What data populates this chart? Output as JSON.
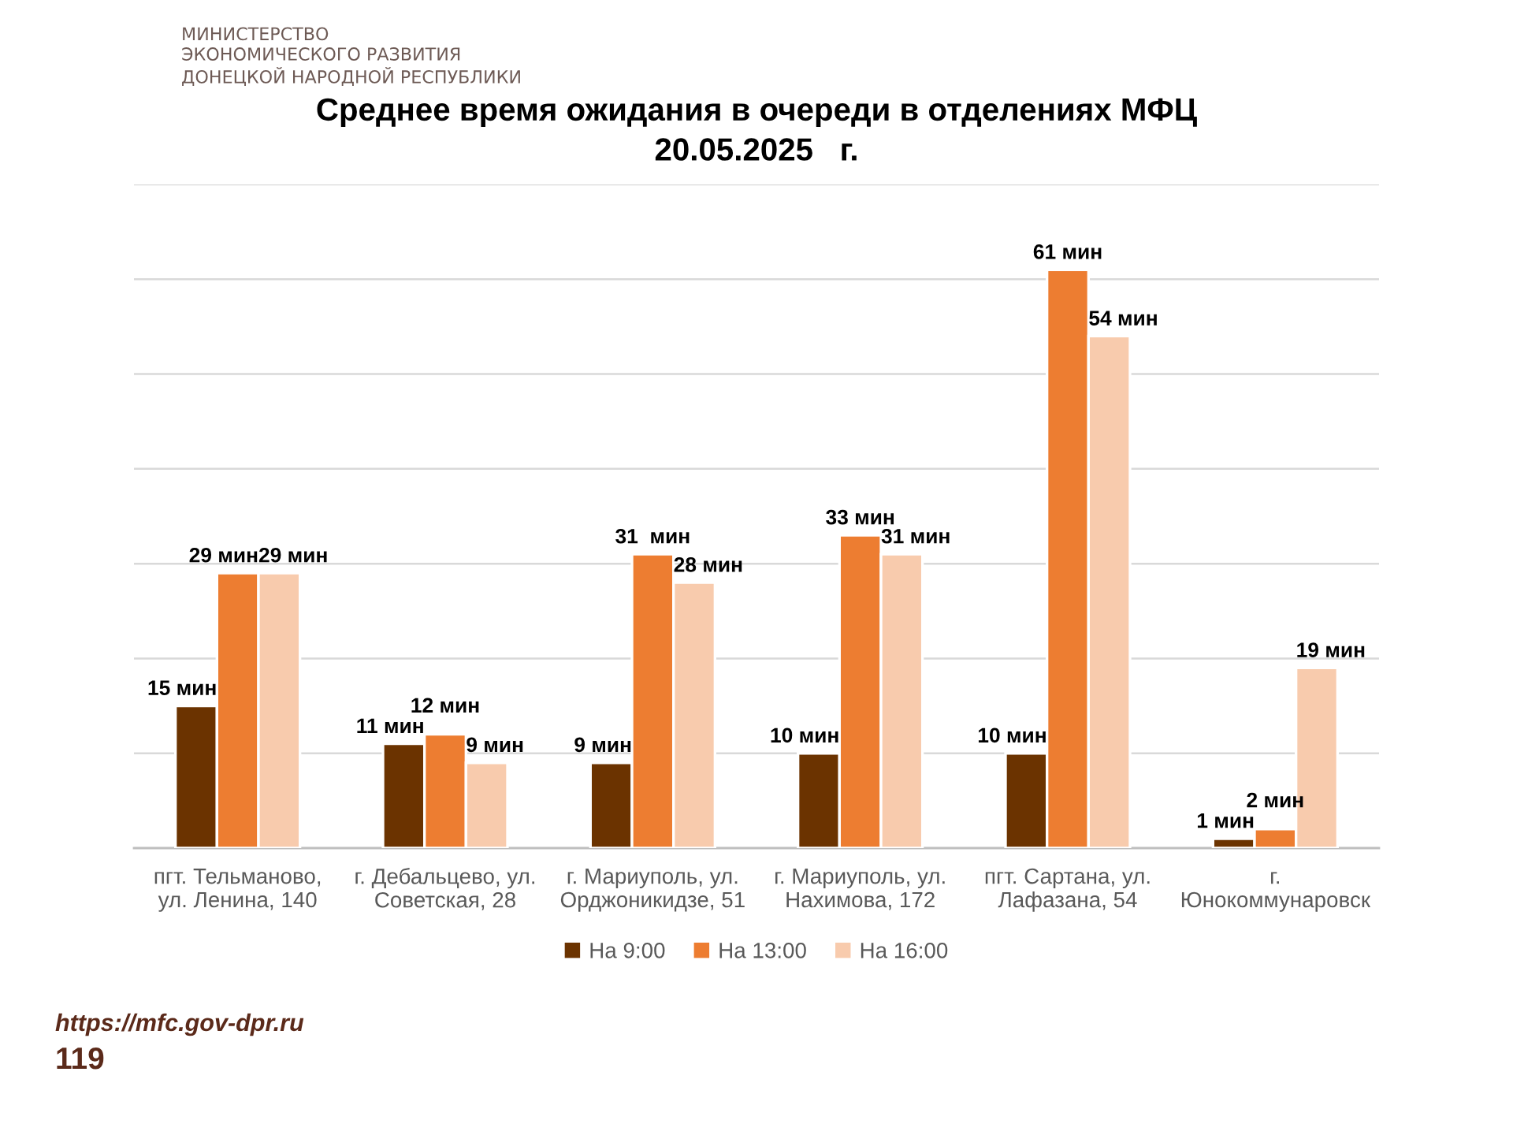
{
  "chart_data": {
    "type": "bar",
    "title": "Среднее время ожидания в очереди в отделениях МФЦ\n20.05.2025   г.",
    "categories": [
      "пгт. Тельманово,\nул. Ленина, 140",
      "г. Дебальцево, ул.\nСоветская, 28",
      "г. Мариуполь, ул.\nОрджоникидзе, 51",
      "г. Мариуполь, ул.\nНахимова, 172",
      "пгт. Сартана, ул.\nЛафазана, 54",
      "г.\nЮнокоммунаровск"
    ],
    "series": [
      {
        "name": "На 9:00",
        "color": "#6b3300",
        "values": [
          15,
          11,
          9,
          10,
          10,
          1
        ],
        "value_labels": [
          "15 мин",
          "11 мин",
          "9 мин",
          "10 мин",
          "10 мин",
          "1 мин"
        ]
      },
      {
        "name": "На 13:00",
        "color": "#ed7d31",
        "values": [
          29,
          12,
          31,
          33,
          61,
          2
        ],
        "value_labels": [
          "29 мин",
          "12 мин",
          "31  мин",
          "33 мин",
          "61 мин",
          "2 мин"
        ]
      },
      {
        "name": "На 16:00",
        "color": "#f8cbad",
        "values": [
          29,
          9,
          28,
          31,
          54,
          19
        ],
        "value_labels": [
          "29 мин",
          "9 мин",
          "28 мин",
          "31 мин",
          "54 мин",
          "19 мин"
        ]
      }
    ],
    "ylim": [
      0,
      70
    ],
    "yticks": [
      {
        "value": 0,
        "label": null
      },
      {
        "value": 10,
        "label": null
      },
      {
        "value": 20,
        "label": null
      },
      {
        "value": 30,
        "label": null
      },
      {
        "value": 40,
        "label": null
      },
      {
        "value": 50,
        "label": null
      },
      {
        "value": 60,
        "label": null
      },
      {
        "value": 70,
        "label": null
      }
    ],
    "tick_labels": "x",
    "grid": "y",
    "legend": "bottom",
    "annotations": [
      "МИНИСТЕРСТВО\nЭКОНОМИЧЕСКОГО РАЗВИТИЯ\nДОНЕЦКОЙ НАРОДНОЙ РЕСПУБЛИКИ",
      "https://mfc.gov-dpr.ru",
      "119"
    ]
  }
}
